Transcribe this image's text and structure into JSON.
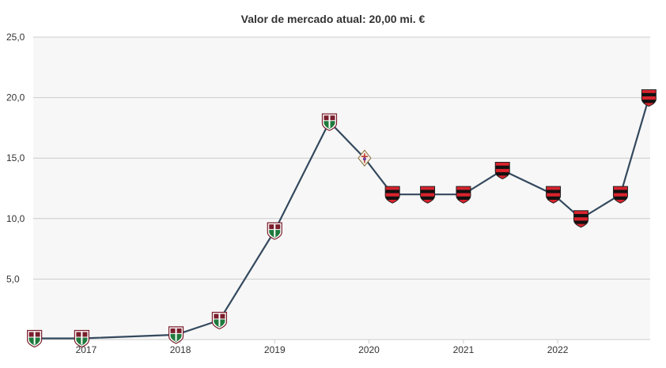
{
  "chart_data": {
    "type": "line",
    "title": "Valor de mercado atual: 20,00 mi. €",
    "ylim": [
      0,
      25
    ],
    "y_ticks": [
      "5,0",
      "10,0",
      "15,0",
      "20,0",
      "25,0"
    ],
    "x_ticks": [
      "2017",
      "2018",
      "2019",
      "2020",
      "2021",
      "2022"
    ],
    "grid": true,
    "series": [
      {
        "values": [
          {
            "date": "2016-06-15",
            "value": 0.1,
            "club": "fluminense"
          },
          {
            "date": "2016-12-15",
            "value": 0.1,
            "club": "fluminense"
          },
          {
            "date": "2017-12-15",
            "value": 0.4,
            "club": "fluminense"
          },
          {
            "date": "2018-06-01",
            "value": 1.6,
            "club": "fluminense"
          },
          {
            "date": "2019-01-01",
            "value": 9.0,
            "club": "fluminense"
          },
          {
            "date": "2019-08-01",
            "value": 18.0,
            "club": "fluminense"
          },
          {
            "date": "2019-12-15",
            "value": 15.0,
            "club": "fiorentina"
          },
          {
            "date": "2020-04-01",
            "value": 12.0,
            "club": "flamengo"
          },
          {
            "date": "2020-08-15",
            "value": 12.0,
            "club": "flamengo"
          },
          {
            "date": "2021-01-01",
            "value": 12.0,
            "club": "flamengo"
          },
          {
            "date": "2021-06-01",
            "value": 14.0,
            "club": "flamengo"
          },
          {
            "date": "2021-12-15",
            "value": 12.0,
            "club": "flamengo"
          },
          {
            "date": "2022-04-01",
            "value": 10.0,
            "club": "flamengo"
          },
          {
            "date": "2022-09-01",
            "value": 12.0,
            "club": "flamengo"
          },
          {
            "date": "2022-12-20",
            "value": 20.0,
            "club": "flamengo"
          }
        ]
      }
    ]
  },
  "colors": {
    "line": "#34495e",
    "grid": "#cccccc",
    "plot_background": "#f7f7f7"
  },
  "icons": {
    "fluminense": "fluminense-crest-icon",
    "fiorentina": "fiorentina-crest-icon",
    "flamengo": "flamengo-crest-icon"
  }
}
